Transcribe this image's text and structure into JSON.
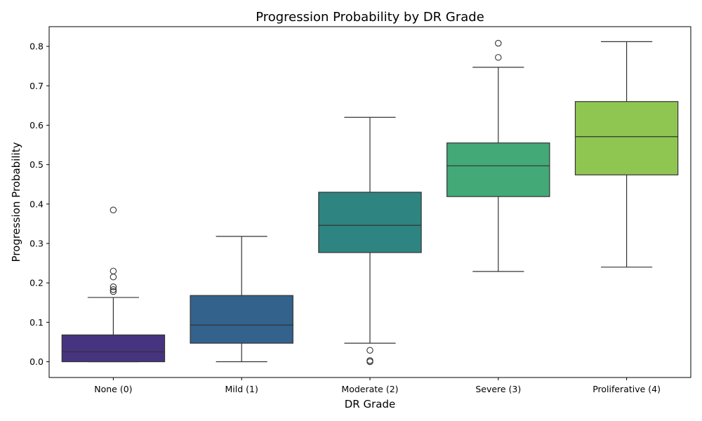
{
  "chart_data": {
    "type": "box",
    "title": "Progression Probability by DR Grade",
    "xlabel": "DR Grade",
    "ylabel": "Progression Probability",
    "ylim": [
      -0.04,
      0.85
    ],
    "yticks": [
      0.0,
      0.1,
      0.2,
      0.3,
      0.4,
      0.5,
      0.6,
      0.7,
      0.8
    ],
    "ytick_labels": [
      "0.0",
      "0.1",
      "0.2",
      "0.3",
      "0.4",
      "0.5",
      "0.6",
      "0.7",
      "0.8"
    ],
    "grid": false,
    "categories": [
      "None (0)",
      "Mild (1)",
      "Moderate (2)",
      "Severe (3)",
      "Proliferative (4)"
    ],
    "boxes": [
      {
        "category": "None (0)",
        "whisker_low": 0.0,
        "q1": 0.0,
        "median": 0.025,
        "q3": 0.068,
        "whisker_high": 0.163,
        "outliers": [
          0.178,
          0.183,
          0.19,
          0.215,
          0.23,
          0.385
        ],
        "color": "#463480"
      },
      {
        "category": "Mild (1)",
        "whisker_low": 0.0,
        "q1": 0.047,
        "median": 0.093,
        "q3": 0.168,
        "whisker_high": 0.318,
        "outliers": [],
        "color": "#33638d"
      },
      {
        "category": "Moderate (2)",
        "whisker_low": 0.047,
        "q1": 0.277,
        "median": 0.346,
        "q3": 0.43,
        "whisker_high": 0.62,
        "outliers": [
          0.0,
          0.003,
          0.029
        ],
        "color": "#2e8481"
      },
      {
        "category": "Severe (3)",
        "whisker_low": 0.229,
        "q1": 0.419,
        "median": 0.497,
        "q3": 0.555,
        "whisker_high": 0.747,
        "outliers": [
          0.772,
          0.808
        ],
        "color": "#43a977"
      },
      {
        "category": "Proliferative (4)",
        "whisker_low": 0.24,
        "q1": 0.474,
        "median": 0.571,
        "q3": 0.66,
        "whisker_high": 0.812,
        "outliers": [],
        "color": "#8fc651"
      }
    ]
  }
}
